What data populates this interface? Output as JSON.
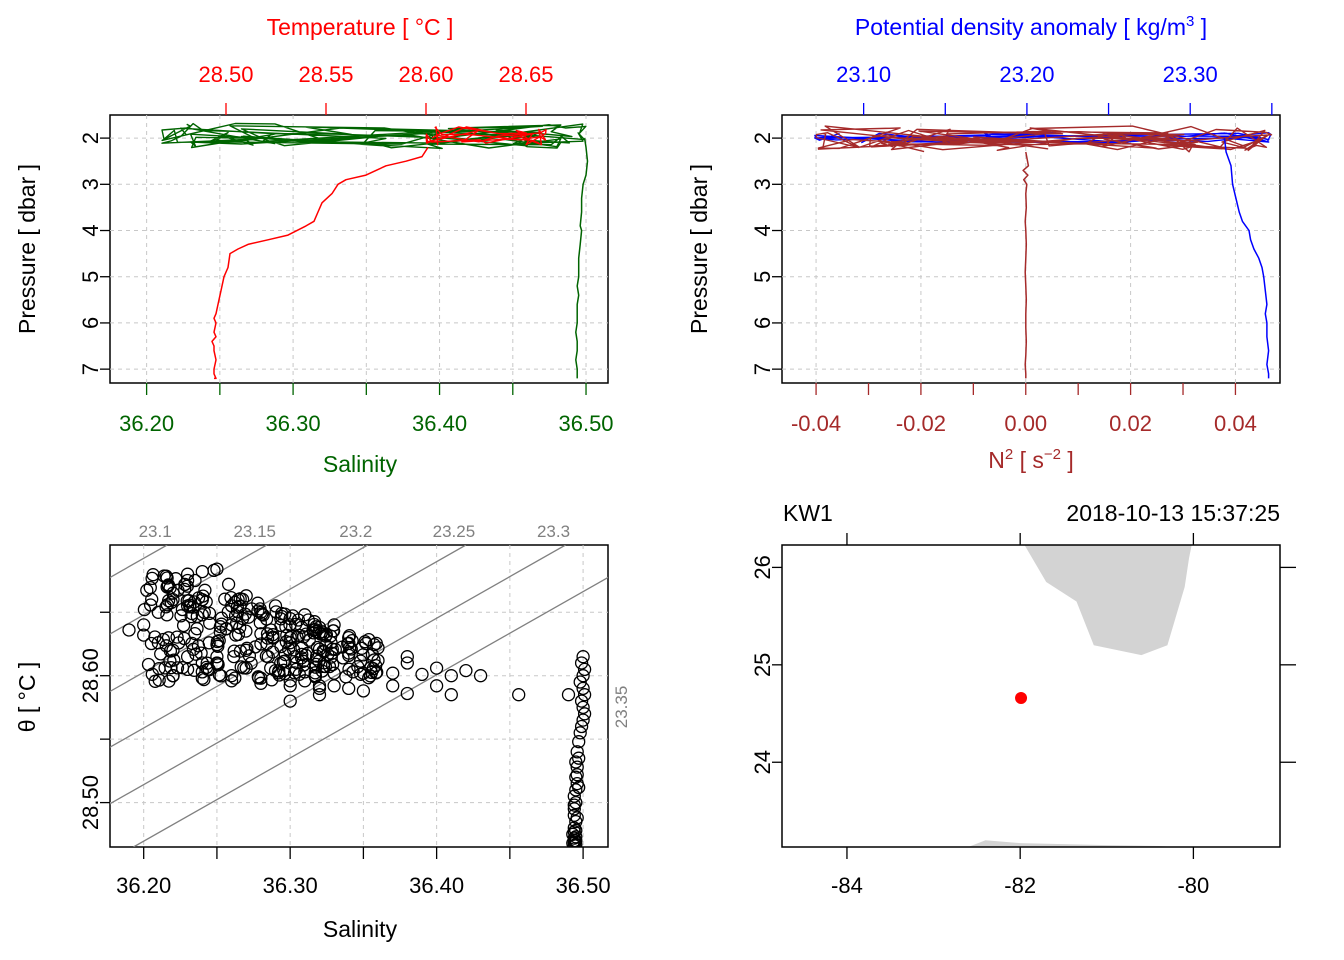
{
  "colors": {
    "temperature": "#ff0000",
    "salinity": "#006400",
    "density": "#0000ff",
    "n2": "#a52a2a",
    "station": "#ff0000",
    "land": "#d3d3d3",
    "isopycnal": "#808080",
    "ts_points": "#000000"
  },
  "chart_data": [
    {
      "type": "line",
      "id": "profile-TS",
      "xlabel": "Salinity",
      "ylabel": "Pressure [ dbar ]",
      "top_label": "Temperature [ °C ]",
      "bottom_ticks": [
        "36.20",
        "36.30",
        "36.40",
        "36.50"
      ],
      "top_ticks": [
        "28.50",
        "28.55",
        "28.60",
        "28.65"
      ],
      "y_ticks": [
        "2",
        "3",
        "4",
        "5",
        "6",
        "7"
      ],
      "xlim": [
        36.175,
        36.515
      ],
      "top_xlim": [
        28.442,
        28.691
      ],
      "ylim": [
        7.3,
        1.5
      ],
      "y_reversed": true,
      "grid": true,
      "series": [
        {
          "axis": "bottom",
          "color_key": "salinity",
          "x": [
            36.499,
            36.5,
            36.501,
            36.5,
            36.498,
            36.497,
            36.497,
            36.496,
            36.497,
            36.496,
            36.495,
            36.495,
            36.495,
            36.494,
            36.495,
            36.494,
            36.494,
            36.494,
            36.493,
            36.494,
            36.494,
            36.493,
            36.494,
            36.494,
            36.494
          ],
          "y": [
            2.0,
            2.2,
            2.5,
            2.8,
            3.0,
            3.3,
            3.6,
            3.9,
            4.0,
            4.3,
            4.6,
            4.8,
            5.0,
            5.2,
            5.4,
            5.6,
            5.8,
            6.0,
            6.2,
            6.4,
            6.6,
            6.8,
            7.0,
            7.1,
            7.2
          ]
        },
        {
          "axis": "top",
          "color_key": "temperature",
          "x": [
            28.601,
            28.598,
            28.59,
            28.58,
            28.575,
            28.57,
            28.56,
            28.556,
            28.553,
            28.548,
            28.546,
            28.544,
            28.54,
            28.531,
            28.521,
            28.511,
            28.506,
            28.502,
            28.501,
            28.499,
            28.498,
            28.497,
            28.496,
            28.495,
            28.494,
            28.495,
            28.494,
            28.495,
            28.493,
            28.494,
            28.494,
            28.495,
            28.494,
            28.494,
            28.495,
            28.494
          ],
          "y": [
            2.2,
            2.4,
            2.5,
            2.6,
            2.7,
            2.8,
            2.9,
            3.0,
            3.2,
            3.4,
            3.6,
            3.8,
            3.9,
            4.1,
            4.2,
            4.3,
            4.4,
            4.5,
            4.8,
            5.0,
            5.2,
            5.4,
            5.6,
            5.8,
            5.9,
            6.0,
            6.2,
            6.3,
            6.4,
            6.5,
            6.6,
            6.8,
            7.0,
            7.1,
            7.2,
            7.2
          ]
        }
      ]
    },
    {
      "type": "line",
      "id": "profile-density-N2",
      "top_label": "Potential density anomaly [ kg/m³ ]",
      "xlabel": "N² [ s⁻² ]",
      "ylabel": "Pressure [ dbar ]",
      "top_ticks": [
        "23.10",
        "23.20",
        "23.30"
      ],
      "bottom_ticks": [
        "-0.04",
        "-0.02",
        "0.00",
        "0.02",
        "0.04"
      ],
      "y_ticks": [
        "2",
        "3",
        "4",
        "5",
        "6",
        "7"
      ],
      "top_xlim": [
        23.05,
        23.355
      ],
      "xlim": [
        -0.0465,
        0.0485
      ],
      "ylim": [
        7.3,
        1.5
      ],
      "y_reversed": true,
      "grid": true,
      "series": [
        {
          "axis": "top",
          "color_key": "density",
          "x": [
            23.321,
            23.322,
            23.325,
            23.326,
            23.328,
            23.33,
            23.332,
            23.334,
            23.336,
            23.337,
            23.339,
            23.342,
            23.344,
            23.345,
            23.346,
            23.347,
            23.346,
            23.347,
            23.347,
            23.348,
            23.347,
            23.348,
            23.348
          ],
          "y": [
            2.0,
            2.3,
            2.6,
            3.0,
            3.3,
            3.6,
            3.8,
            3.9,
            4.0,
            4.2,
            4.4,
            4.6,
            4.8,
            5.0,
            5.3,
            5.6,
            5.8,
            6.0,
            6.3,
            6.6,
            6.9,
            7.1,
            7.2
          ]
        },
        {
          "axis": "bottom",
          "color_key": "n2",
          "x": [
            0.0,
            0.0005,
            -0.0005,
            0.0004,
            -0.0004,
            0.0002,
            0.0,
            0.0001,
            -0.0001,
            0.0,
            0.0001,
            0.0,
            -0.0001,
            0.0,
            0.0001,
            0.0,
            0.0,
            0.0001,
            0.0,
            -0.0001,
            0.0,
            0.0
          ],
          "y": [
            2.3,
            2.6,
            2.7,
            2.8,
            2.9,
            3.0,
            3.2,
            3.5,
            3.8,
            4.0,
            4.3,
            4.6,
            4.9,
            5.2,
            5.5,
            5.8,
            6.1,
            6.4,
            6.7,
            6.9,
            7.1,
            7.2
          ]
        }
      ]
    },
    {
      "type": "scatter",
      "id": "TS-diagram",
      "xlabel": "Salinity",
      "ylabel": "θ [ °C ]",
      "x_ticks": [
        "36.20",
        "36.30",
        "36.40",
        "36.50"
      ],
      "y_ticks": [
        "28.50",
        "28.60"
      ],
      "xlim": [
        36.177,
        36.517
      ],
      "ylim": [
        28.465,
        28.703
      ],
      "grid": true,
      "isopycnal_labels": [
        "23.1",
        "23.15",
        "23.2",
        "23.25",
        "23.3",
        "23.35"
      ],
      "points_x": [
        36.19,
        36.2,
        36.21,
        36.22,
        36.23,
        36.25,
        36.27,
        36.29,
        36.31,
        36.33,
        36.35,
        36.37,
        36.39,
        36.41,
        36.43,
        36.216,
        36.22,
        36.23,
        36.24,
        36.26,
        36.28,
        36.3,
        36.32,
        36.34,
        36.36,
        36.38,
        36.4,
        36.42,
        36.22,
        36.24,
        36.26,
        36.28,
        36.3,
        36.32,
        36.216,
        36.23,
        36.24,
        36.25,
        36.2,
        36.21,
        36.22,
        36.23,
        36.24,
        36.26,
        36.28,
        36.3,
        36.32,
        36.34,
        36.36,
        36.38,
        36.22,
        36.24,
        36.26,
        36.28,
        36.3,
        36.32,
        36.34,
        36.37,
        36.4,
        36.3,
        36.32,
        36.31,
        36.33,
        36.35,
        36.38,
        36.41,
        36.456,
        36.49,
        36.248,
        36.235,
        36.228,
        36.258,
        36.27,
        36.29,
        36.31,
        36.33,
        36.3,
        36.28,
        36.27,
        36.25,
        36.24,
        36.23,
        36.22
      ],
      "points_y": [
        28.636,
        28.632,
        28.626,
        28.62,
        28.615,
        28.61,
        28.606,
        28.604,
        28.603,
        28.602,
        28.602,
        28.602,
        28.601,
        28.6,
        28.6,
        28.67,
        28.66,
        28.655,
        28.648,
        28.64,
        28.633,
        28.626,
        28.621,
        28.616,
        28.612,
        28.61,
        28.606,
        28.604,
        28.6,
        28.598,
        28.596,
        28.594,
        28.592,
        28.59,
        28.677,
        28.68,
        28.682,
        28.684,
        28.64,
        28.65,
        28.665,
        28.675,
        28.66,
        28.655,
        28.65,
        28.645,
        28.638,
        28.63,
        28.622,
        28.615,
        28.6,
        28.603,
        28.6,
        28.598,
        28.596,
        28.592,
        28.59,
        28.592,
        28.592,
        28.58,
        28.585,
        28.596,
        28.592,
        28.588,
        28.586,
        28.585,
        28.585,
        28.585,
        28.683,
        28.675,
        28.668,
        28.672,
        28.663,
        28.655,
        28.648,
        28.64,
        28.63,
        28.625,
        28.62,
        28.615,
        28.61,
        28.605,
        28.6
      ],
      "cluster_x": [
        36.5,
        36.499,
        36.501,
        36.5,
        36.498,
        36.5,
        36.501,
        36.499,
        36.5,
        36.501,
        36.5,
        36.499,
        36.498,
        36.497,
        36.496,
        36.497,
        36.496,
        36.495,
        36.496,
        36.495,
        36.494,
        36.495,
        36.494,
        36.494,
        36.495,
        36.494,
        36.493,
        36.494,
        36.495,
        36.494,
        36.495,
        36.494,
        36.493,
        36.494,
        36.495,
        36.494,
        36.497,
        36.496,
        36.495,
        36.494,
        36.496,
        36.495
      ],
      "cluster_y": [
        28.615,
        28.61,
        28.605,
        28.6,
        28.595,
        28.59,
        28.585,
        28.58,
        28.575,
        28.57,
        28.565,
        28.56,
        28.555,
        28.548,
        28.54,
        28.535,
        28.528,
        28.52,
        28.515,
        28.51,
        28.505,
        28.5,
        28.495,
        28.49,
        28.485,
        28.48,
        28.475,
        28.472,
        28.47,
        28.468,
        28.467,
        28.466,
        28.468,
        28.47,
        28.473,
        28.477,
        28.512,
        28.522,
        28.532,
        28.498,
        28.488,
        28.478
      ]
    },
    {
      "type": "scatter",
      "id": "map",
      "station_name": "KW1",
      "datetime": "2018-10-13 15:37:25",
      "x_ticks": [
        "-84",
        "-82",
        "-80"
      ],
      "y_ticks": [
        "24",
        "25",
        "26"
      ],
      "xlim": [
        -84.75,
        -79.0
      ],
      "ylim": [
        23.13,
        26.23
      ],
      "station": {
        "lon": -81.99,
        "lat": 24.66
      },
      "land": [
        {
          "lon": [
            -81.95,
            -81.7,
            -81.35,
            -81.15,
            -80.6,
            -80.3,
            -80.1,
            -80.05,
            -80.02,
            -81.95
          ],
          "lat": [
            26.23,
            25.85,
            25.65,
            25.2,
            25.1,
            25.2,
            25.8,
            26.1,
            26.23,
            26.23
          ]
        },
        {
          "lon": [
            -82.6,
            -82.4,
            -82.0,
            -81.0,
            -80.4,
            -80.2,
            -82.6
          ],
          "lat": [
            23.13,
            23.2,
            23.17,
            23.15,
            23.14,
            23.13,
            23.13
          ]
        }
      ]
    }
  ]
}
